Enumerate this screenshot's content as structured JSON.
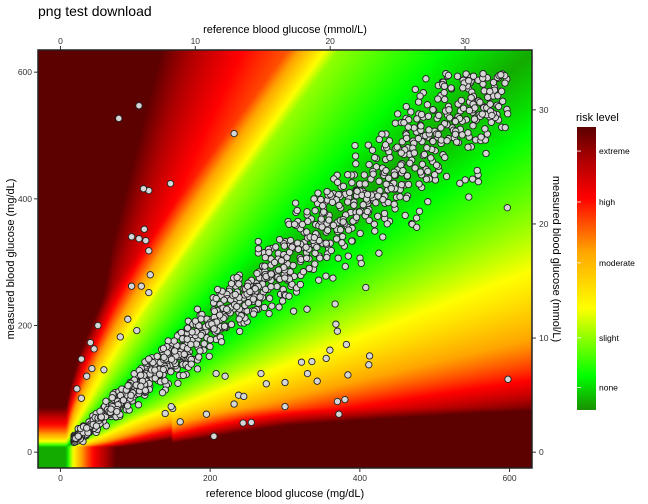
{
  "chart_data": {
    "type": "scatter",
    "title": "png test download",
    "xlabel": "reference blood glucose (mg/dL)",
    "ylabel": "measured blood glucose (mg/dL)",
    "x2label": "reference blood glucose (mmol/L)",
    "y2label": "measured blood glucose (mmol/L)",
    "xlim": [
      -30,
      630
    ],
    "ylim": [
      -25,
      635
    ],
    "x_ticks": [
      0,
      200,
      400,
      600
    ],
    "y_ticks": [
      0,
      200,
      400,
      600
    ],
    "x2_ticks": [
      0,
      10,
      20,
      30
    ],
    "y2_ticks": [
      0,
      10,
      20,
      30
    ],
    "mmol_per_mgdl": 0.0555,
    "background": "risk-level heatmap (surveillance error grid)",
    "grid": false,
    "legend": {
      "title": "risk level",
      "position": "right",
      "colors": [
        "#1a8f00",
        "#00ff00",
        "#ffff00",
        "#ffa500",
        "#ff0000",
        "#b00000",
        "#5c0000"
      ],
      "labels": [
        "none",
        "slight",
        "moderate",
        "high",
        "extreme"
      ]
    },
    "marker": {
      "fill": "#d6d6d6",
      "stroke": "#222222"
    },
    "outliers": [
      [
        105,
        547
      ],
      [
        78,
        527
      ],
      [
        147,
        424
      ],
      [
        232,
        503
      ],
      [
        118,
        413
      ],
      [
        111,
        416
      ],
      [
        95,
        340
      ],
      [
        105,
        337
      ],
      [
        112,
        352
      ],
      [
        114,
        334
      ],
      [
        118,
        318
      ],
      [
        95,
        262
      ],
      [
        108,
        262
      ],
      [
        120,
        280
      ],
      [
        118,
        252
      ],
      [
        40,
        173
      ],
      [
        45,
        163
      ],
      [
        28,
        147
      ],
      [
        42,
        132
      ],
      [
        58,
        130
      ],
      [
        35,
        120
      ],
      [
        22,
        100
      ],
      [
        28,
        85
      ],
      [
        50,
        200
      ],
      [
        90,
        210
      ],
      [
        102,
        192
      ],
      [
        80,
        182
      ],
      [
        210,
        257
      ],
      [
        236,
        276
      ],
      [
        250,
        262
      ],
      [
        195,
        60
      ],
      [
        205,
        25
      ],
      [
        208,
        124
      ],
      [
        220,
        120
      ],
      [
        238,
        90
      ],
      [
        245,
        88
      ],
      [
        232,
        76
      ],
      [
        275,
        108
      ],
      [
        300,
        72
      ],
      [
        330,
        124
      ],
      [
        322,
        142
      ],
      [
        343,
        112
      ],
      [
        360,
        161
      ],
      [
        355,
        148
      ],
      [
        372,
        60
      ],
      [
        380,
        83
      ],
      [
        370,
        191
      ],
      [
        367,
        234
      ],
      [
        402,
        298
      ],
      [
        408,
        260
      ],
      [
        412,
        138
      ],
      [
        413,
        152
      ],
      [
        382,
        170
      ],
      [
        368,
        202
      ],
      [
        410,
        380
      ],
      [
        392,
        390
      ],
      [
        470,
        360
      ],
      [
        476,
        355
      ],
      [
        597,
        386
      ],
      [
        598,
        115
      ],
      [
        244,
        46
      ],
      [
        255,
        47
      ],
      [
        150,
        69
      ],
      [
        140,
        61
      ],
      [
        148,
        72
      ],
      [
        300,
        110
      ],
      [
        268,
        124
      ],
      [
        336,
        143
      ],
      [
        384,
        122
      ],
      [
        370,
        80
      ],
      [
        160,
        48
      ]
    ]
  }
}
